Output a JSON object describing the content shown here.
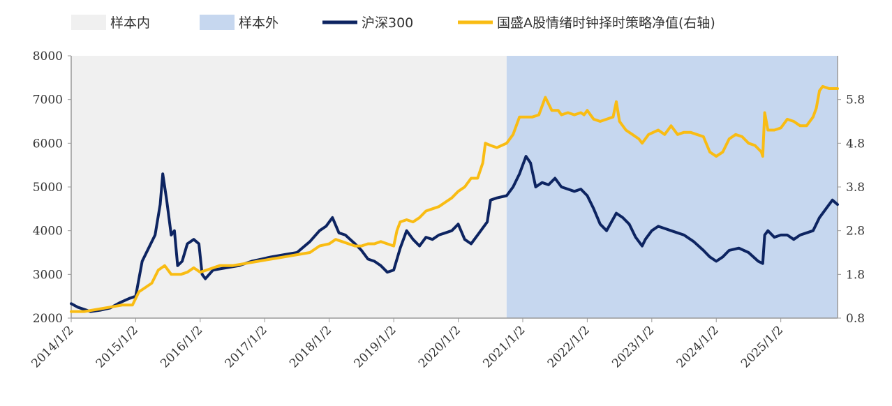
{
  "chart_data": {
    "type": "line",
    "legend_position": "top",
    "grid": false,
    "colors": {
      "in_sample": "#f0f0f0",
      "out_sample": "#c6d7ef",
      "hs300": "#0d2461",
      "strategy": "#f9bc13"
    },
    "legend": [
      {
        "key": "in_sample",
        "label": "样本内",
        "kind": "patch"
      },
      {
        "key": "out_sample",
        "label": "样本外",
        "kind": "patch"
      },
      {
        "key": "hs300",
        "label": "沪深300",
        "kind": "line"
      },
      {
        "key": "strategy",
        "label": "国盛A股情绪时钟择时策略净值(右轴)",
        "kind": "line"
      }
    ],
    "x_ticks": [
      "2014/1/2",
      "2015/1/2",
      "2016/1/2",
      "2017/1/2",
      "2018/1/2",
      "2019/1/2",
      "2020/1/2",
      "2021/1/2",
      "2022/1/2",
      "2023/1/2",
      "2024/1/2",
      "2025/1/2"
    ],
    "x_range": [
      2014.0,
      2025.88
    ],
    "y_left": {
      "range": [
        2000,
        8000
      ],
      "ticks": [
        "2000",
        "3000",
        "4000",
        "5000",
        "6000",
        "7000",
        "8000"
      ]
    },
    "y_right": {
      "range": [
        0.8,
        6.8
      ],
      "ticks": [
        "0.8",
        "1.8",
        "2.8",
        "3.8",
        "4.8",
        "5.8"
      ]
    },
    "regions": [
      {
        "key": "in_sample",
        "from": 2014.0,
        "to": 2020.75
      },
      {
        "key": "out_sample",
        "from": 2020.75,
        "to": 2025.88
      }
    ],
    "series": [
      {
        "name": "沪深300",
        "key": "hs300",
        "axis": "left",
        "points": [
          [
            2014.0,
            2330
          ],
          [
            2014.1,
            2250
          ],
          [
            2014.3,
            2150
          ],
          [
            2014.45,
            2180
          ],
          [
            2014.6,
            2230
          ],
          [
            2014.75,
            2350
          ],
          [
            2014.9,
            2450
          ],
          [
            2015.0,
            2500
          ],
          [
            2015.1,
            3300
          ],
          [
            2015.2,
            3600
          ],
          [
            2015.3,
            3900
          ],
          [
            2015.38,
            4600
          ],
          [
            2015.42,
            5300
          ],
          [
            2015.48,
            4700
          ],
          [
            2015.55,
            3900
          ],
          [
            2015.6,
            4000
          ],
          [
            2015.65,
            3200
          ],
          [
            2015.72,
            3300
          ],
          [
            2015.8,
            3700
          ],
          [
            2015.9,
            3800
          ],
          [
            2015.98,
            3700
          ],
          [
            2016.03,
            3000
          ],
          [
            2016.08,
            2900
          ],
          [
            2016.2,
            3100
          ],
          [
            2016.4,
            3150
          ],
          [
            2016.6,
            3200
          ],
          [
            2016.8,
            3300
          ],
          [
            2016.95,
            3350
          ],
          [
            2017.1,
            3400
          ],
          [
            2017.3,
            3450
          ],
          [
            2017.5,
            3500
          ],
          [
            2017.7,
            3750
          ],
          [
            2017.85,
            4000
          ],
          [
            2017.95,
            4100
          ],
          [
            2018.05,
            4300
          ],
          [
            2018.15,
            3950
          ],
          [
            2018.25,
            3900
          ],
          [
            2018.4,
            3700
          ],
          [
            2018.5,
            3550
          ],
          [
            2018.6,
            3350
          ],
          [
            2018.7,
            3300
          ],
          [
            2018.8,
            3200
          ],
          [
            2018.9,
            3050
          ],
          [
            2019.0,
            3100
          ],
          [
            2019.1,
            3600
          ],
          [
            2019.2,
            4000
          ],
          [
            2019.3,
            3800
          ],
          [
            2019.4,
            3650
          ],
          [
            2019.5,
            3850
          ],
          [
            2019.6,
            3800
          ],
          [
            2019.7,
            3900
          ],
          [
            2019.8,
            3950
          ],
          [
            2019.9,
            4000
          ],
          [
            2020.0,
            4150
          ],
          [
            2020.1,
            3800
          ],
          [
            2020.2,
            3700
          ],
          [
            2020.3,
            3900
          ],
          [
            2020.45,
            4200
          ],
          [
            2020.5,
            4700
          ],
          [
            2020.6,
            4750
          ],
          [
            2020.75,
            4800
          ],
          [
            2020.85,
            5000
          ],
          [
            2020.95,
            5300
          ],
          [
            2021.05,
            5700
          ],
          [
            2021.12,
            5550
          ],
          [
            2021.2,
            5000
          ],
          [
            2021.3,
            5100
          ],
          [
            2021.4,
            5050
          ],
          [
            2021.5,
            5200
          ],
          [
            2021.6,
            5000
          ],
          [
            2021.7,
            4950
          ],
          [
            2021.8,
            4900
          ],
          [
            2021.9,
            4950
          ],
          [
            2022.0,
            4800
          ],
          [
            2022.1,
            4500
          ],
          [
            2022.2,
            4150
          ],
          [
            2022.3,
            4000
          ],
          [
            2022.45,
            4400
          ],
          [
            2022.55,
            4300
          ],
          [
            2022.65,
            4150
          ],
          [
            2022.75,
            3850
          ],
          [
            2022.85,
            3650
          ],
          [
            2022.9,
            3800
          ],
          [
            2023.0,
            4000
          ],
          [
            2023.1,
            4100
          ],
          [
            2023.2,
            4050
          ],
          [
            2023.3,
            4000
          ],
          [
            2023.5,
            3900
          ],
          [
            2023.65,
            3750
          ],
          [
            2023.8,
            3550
          ],
          [
            2023.9,
            3400
          ],
          [
            2024.0,
            3300
          ],
          [
            2024.1,
            3400
          ],
          [
            2024.2,
            3550
          ],
          [
            2024.35,
            3600
          ],
          [
            2024.5,
            3500
          ],
          [
            2024.65,
            3300
          ],
          [
            2024.72,
            3250
          ],
          [
            2024.75,
            3900
          ],
          [
            2024.8,
            4000
          ],
          [
            2024.9,
            3850
          ],
          [
            2025.0,
            3900
          ],
          [
            2025.1,
            3900
          ],
          [
            2025.2,
            3800
          ],
          [
            2025.3,
            3900
          ],
          [
            2025.4,
            3950
          ],
          [
            2025.5,
            4000
          ],
          [
            2025.6,
            4300
          ],
          [
            2025.7,
            4500
          ],
          [
            2025.8,
            4700
          ],
          [
            2025.88,
            4600
          ]
        ]
      },
      {
        "name": "国盛A股情绪时钟择时策略净值(右轴)",
        "key": "strategy",
        "axis": "right",
        "points": [
          [
            2014.0,
            0.95
          ],
          [
            2014.2,
            0.95
          ],
          [
            2014.4,
            1.0
          ],
          [
            2014.6,
            1.05
          ],
          [
            2014.8,
            1.1
          ],
          [
            2014.95,
            1.1
          ],
          [
            2015.05,
            1.4
          ],
          [
            2015.15,
            1.5
          ],
          [
            2015.25,
            1.6
          ],
          [
            2015.35,
            1.9
          ],
          [
            2015.45,
            2.0
          ],
          [
            2015.55,
            1.8
          ],
          [
            2015.7,
            1.8
          ],
          [
            2015.8,
            1.85
          ],
          [
            2015.9,
            1.95
          ],
          [
            2016.0,
            1.85
          ],
          [
            2016.1,
            1.9
          ],
          [
            2016.3,
            2.0
          ],
          [
            2016.5,
            2.0
          ],
          [
            2016.7,
            2.05
          ],
          [
            2016.9,
            2.1
          ],
          [
            2017.1,
            2.15
          ],
          [
            2017.3,
            2.2
          ],
          [
            2017.5,
            2.25
          ],
          [
            2017.7,
            2.3
          ],
          [
            2017.85,
            2.45
          ],
          [
            2018.0,
            2.5
          ],
          [
            2018.1,
            2.6
          ],
          [
            2018.2,
            2.55
          ],
          [
            2018.3,
            2.5
          ],
          [
            2018.4,
            2.45
          ],
          [
            2018.5,
            2.45
          ],
          [
            2018.6,
            2.5
          ],
          [
            2018.7,
            2.5
          ],
          [
            2018.8,
            2.55
          ],
          [
            2018.9,
            2.5
          ],
          [
            2019.0,
            2.45
          ],
          [
            2019.05,
            2.8
          ],
          [
            2019.1,
            3.0
          ],
          [
            2019.2,
            3.05
          ],
          [
            2019.3,
            3.0
          ],
          [
            2019.4,
            3.1
          ],
          [
            2019.5,
            3.25
          ],
          [
            2019.6,
            3.3
          ],
          [
            2019.7,
            3.35
          ],
          [
            2019.8,
            3.45
          ],
          [
            2019.9,
            3.55
          ],
          [
            2020.0,
            3.7
          ],
          [
            2020.1,
            3.8
          ],
          [
            2020.2,
            4.0
          ],
          [
            2020.3,
            4.0
          ],
          [
            2020.38,
            4.35
          ],
          [
            2020.42,
            4.8
          ],
          [
            2020.5,
            4.75
          ],
          [
            2020.6,
            4.7
          ],
          [
            2020.75,
            4.8
          ],
          [
            2020.85,
            5.0
          ],
          [
            2020.95,
            5.4
          ],
          [
            2021.05,
            5.4
          ],
          [
            2021.15,
            5.4
          ],
          [
            2021.25,
            5.45
          ],
          [
            2021.3,
            5.65
          ],
          [
            2021.35,
            5.85
          ],
          [
            2021.45,
            5.55
          ],
          [
            2021.55,
            5.55
          ],
          [
            2021.6,
            5.45
          ],
          [
            2021.7,
            5.5
          ],
          [
            2021.8,
            5.45
          ],
          [
            2021.9,
            5.5
          ],
          [
            2021.95,
            5.45
          ],
          [
            2022.0,
            5.55
          ],
          [
            2022.1,
            5.35
          ],
          [
            2022.2,
            5.3
          ],
          [
            2022.3,
            5.35
          ],
          [
            2022.4,
            5.4
          ],
          [
            2022.45,
            5.75
          ],
          [
            2022.5,
            5.3
          ],
          [
            2022.6,
            5.1
          ],
          [
            2022.7,
            5.0
          ],
          [
            2022.8,
            4.9
          ],
          [
            2022.85,
            4.8
          ],
          [
            2022.95,
            5.0
          ],
          [
            2023.1,
            5.1
          ],
          [
            2023.2,
            5.0
          ],
          [
            2023.3,
            5.2
          ],
          [
            2023.4,
            5.0
          ],
          [
            2023.5,
            5.05
          ],
          [
            2023.6,
            5.05
          ],
          [
            2023.7,
            5.0
          ],
          [
            2023.8,
            4.95
          ],
          [
            2023.9,
            4.6
          ],
          [
            2024.0,
            4.5
          ],
          [
            2024.1,
            4.6
          ],
          [
            2024.2,
            4.9
          ],
          [
            2024.3,
            5.0
          ],
          [
            2024.4,
            4.95
          ],
          [
            2024.5,
            4.8
          ],
          [
            2024.6,
            4.75
          ],
          [
            2024.7,
            4.6
          ],
          [
            2024.72,
            4.5
          ],
          [
            2024.75,
            5.5
          ],
          [
            2024.8,
            5.1
          ],
          [
            2024.9,
            5.1
          ],
          [
            2025.0,
            5.15
          ],
          [
            2025.1,
            5.35
          ],
          [
            2025.2,
            5.3
          ],
          [
            2025.3,
            5.2
          ],
          [
            2025.4,
            5.2
          ],
          [
            2025.5,
            5.4
          ],
          [
            2025.55,
            5.6
          ],
          [
            2025.6,
            6.0
          ],
          [
            2025.65,
            6.1
          ],
          [
            2025.75,
            6.05
          ],
          [
            2025.88,
            6.05
          ]
        ]
      }
    ]
  }
}
